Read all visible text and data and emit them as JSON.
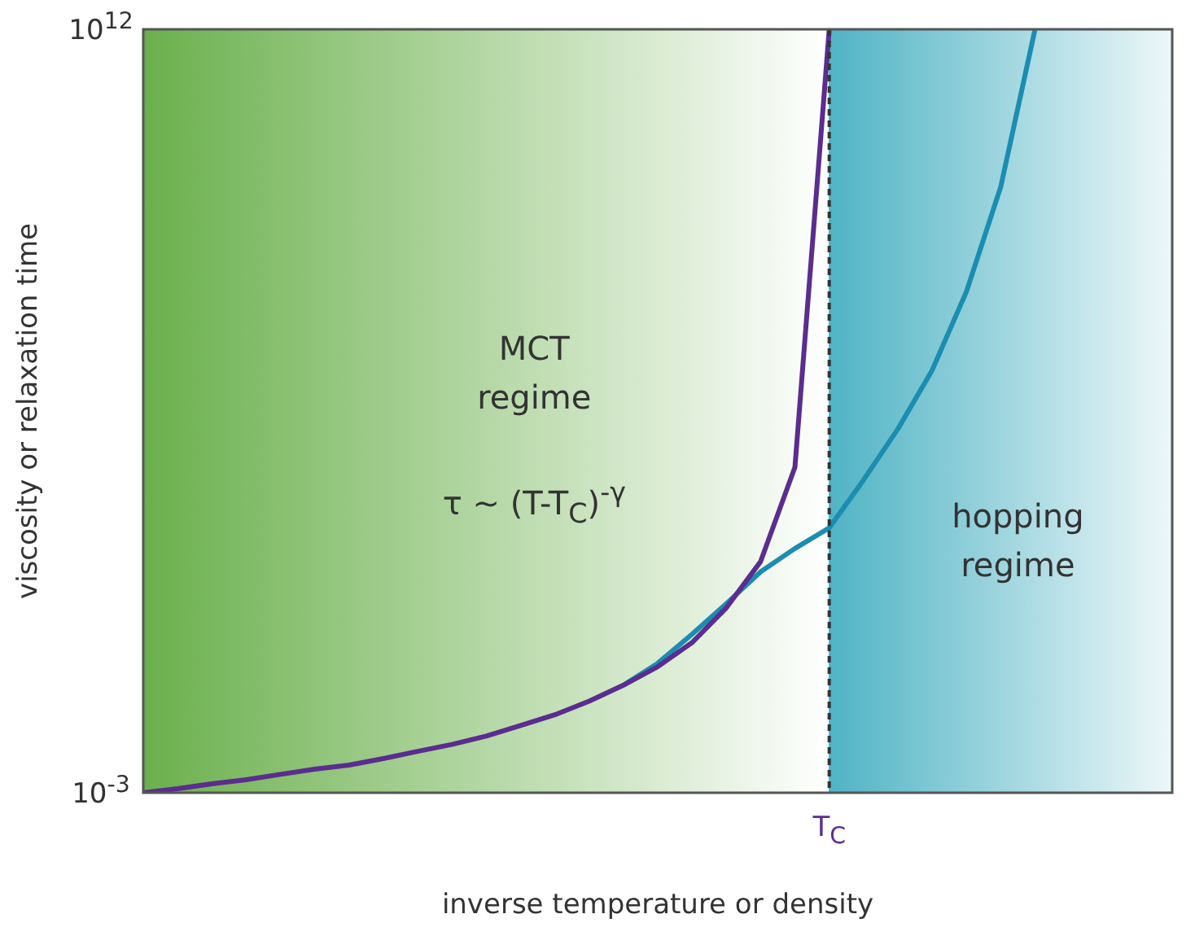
{
  "chart_data": {
    "type": "line",
    "xlabel": "inverse temperature or density",
    "ylabel": "viscosity or relaxation time",
    "log": "y",
    "ylim": [
      0.001,
      1000000000000.0
    ],
    "yticks": [
      {
        "value": 0.001,
        "label": "10$^{-3}$"
      },
      {
        "value": 1000000000000.0,
        "label": "10$^{12}$"
      }
    ],
    "grid": false,
    "legend": false,
    "categories": [
      null,
      null,
      null,
      null,
      null,
      null,
      null,
      null,
      null,
      null,
      null,
      null,
      null,
      null,
      null,
      null,
      null,
      null,
      null,
      null,
      "T$_{C}$",
      null,
      null,
      null,
      null,
      null,
      null,
      null,
      null,
      null,
      null
    ],
    "series": [
      {
        "color": "#5b2d8e",
        "values": [
          0.001,
          0.0012,
          0.0015,
          0.0018,
          0.0023,
          0.0029,
          0.0035,
          0.0047,
          0.0065,
          0.0089,
          0.013,
          0.021,
          0.034,
          0.063,
          0.13,
          0.3,
          0.89,
          4.3,
          35,
          2500,
          1000000000000.0,
          null,
          null,
          null,
          null,
          null,
          null,
          null,
          null,
          null,
          null
        ]
      },
      {
        "color": "#1b8db0",
        "values": [
          null,
          null,
          null,
          null,
          null,
          null,
          null,
          null,
          null,
          null,
          null,
          null,
          null,
          null,
          0.13,
          0.35,
          1.3,
          5.2,
          22,
          63,
          160,
          1400,
          14000,
          200000,
          7000000,
          800000000,
          1000000000000.0,
          null,
          null,
          null,
          null
        ]
      }
    ],
    "ref_lines": [
      {
        "axis": "x",
        "value": "T$_{C}$",
        "color": "#333333",
        "line_style": "dashed"
      }
    ],
    "annotations": [
      "MCT\nregime",
      "τ ~ (T-T$_{C}$)$^{-γ}$",
      "hopping\nregime"
    ]
  }
}
